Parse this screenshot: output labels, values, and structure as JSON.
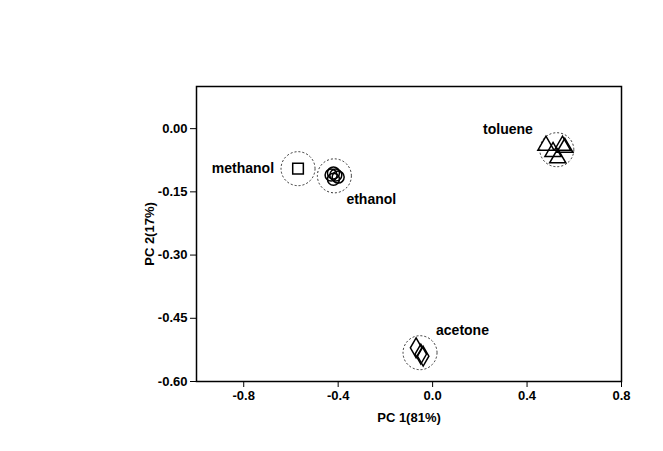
{
  "chart_data": {
    "type": "scatter",
    "xlabel": "PC 1(81%)",
    "ylabel": "PC 2(17%)",
    "xlim": [
      -1.0,
      0.8
    ],
    "ylim": [
      -0.6,
      0.1
    ],
    "xticks": [
      -0.8,
      -0.4,
      {
        "value": 0,
        "label": "0.0"
      },
      0.4,
      0.8
    ],
    "yticks": [
      {
        "value": 0,
        "label": "0.00"
      },
      -0.15,
      {
        "value": -0.3,
        "label": "-0.30"
      },
      -0.45,
      {
        "value": -0.6,
        "label": "-0.60"
      }
    ],
    "series": [
      {
        "name": "methanol",
        "marker": "square",
        "color": "#000000",
        "x": [
          -0.57
        ],
        "y": [
          -0.095
        ]
      },
      {
        "name": "ethanol",
        "marker": "circle",
        "color": "#000000",
        "x": [
          -0.42,
          -0.41,
          -0.43,
          -0.4,
          -0.42
        ],
        "y": [
          -0.105,
          -0.11,
          -0.11,
          -0.115,
          -0.12
        ]
      },
      {
        "name": "toluene",
        "marker": "triangle",
        "color": "#000000",
        "x": [
          0.48,
          0.51,
          0.53,
          0.55,
          0.56
        ],
        "y": [
          -0.04,
          -0.055,
          -0.07,
          -0.04,
          -0.045
        ]
      },
      {
        "name": "acetone",
        "marker": "diamond",
        "color": "#000000",
        "x": [
          -0.07,
          -0.05,
          -0.04
        ],
        "y": [
          -0.52,
          -0.535,
          -0.54
        ]
      }
    ]
  }
}
